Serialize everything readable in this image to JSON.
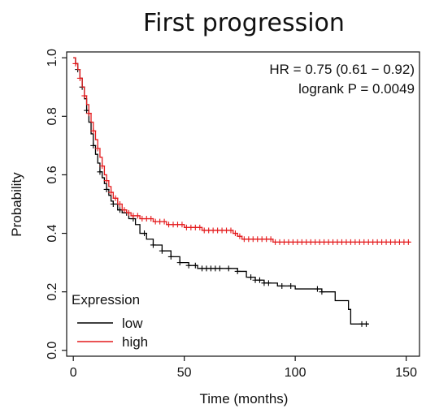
{
  "chart_data": {
    "type": "line",
    "title": "First progression",
    "xlabel": "Time (months)",
    "ylabel": "Probability",
    "xlim": [
      -3,
      156
    ],
    "ylim": [
      -0.02,
      1.02
    ],
    "xticks": [
      0,
      50,
      100,
      150
    ],
    "yticks": [
      0.0,
      0.2,
      0.4,
      0.6,
      0.8,
      1.0
    ],
    "annotations": [
      "HR = 0.75 (0.61 − 0.92)",
      "logrank P = 0.0049"
    ],
    "legend": {
      "title": "Expression",
      "placement": "bottom-left"
    },
    "series": [
      {
        "name": "low",
        "color": "#000000",
        "step_points": [
          [
            0,
            1.0
          ],
          [
            1,
            0.98
          ],
          [
            2,
            0.96
          ],
          [
            3,
            0.93
          ],
          [
            4,
            0.9
          ],
          [
            5,
            0.86
          ],
          [
            6,
            0.82
          ],
          [
            7,
            0.78
          ],
          [
            8,
            0.74
          ],
          [
            9,
            0.7
          ],
          [
            10,
            0.67
          ],
          [
            11,
            0.64
          ],
          [
            12,
            0.61
          ],
          [
            13,
            0.59
          ],
          [
            14,
            0.57
          ],
          [
            15,
            0.55
          ],
          [
            16,
            0.53
          ],
          [
            17,
            0.51
          ],
          [
            18,
            0.5
          ],
          [
            20,
            0.48
          ],
          [
            22,
            0.47
          ],
          [
            25,
            0.45
          ],
          [
            28,
            0.43
          ],
          [
            30,
            0.4
          ],
          [
            33,
            0.38
          ],
          [
            36,
            0.36
          ],
          [
            40,
            0.34
          ],
          [
            44,
            0.32
          ],
          [
            48,
            0.3
          ],
          [
            52,
            0.29
          ],
          [
            56,
            0.28
          ],
          [
            62,
            0.28
          ],
          [
            68,
            0.28
          ],
          [
            74,
            0.27
          ],
          [
            78,
            0.25
          ],
          [
            82,
            0.24
          ],
          [
            86,
            0.23
          ],
          [
            92,
            0.22
          ],
          [
            100,
            0.21
          ],
          [
            106,
            0.21
          ],
          [
            112,
            0.2
          ],
          [
            118,
            0.17
          ],
          [
            124,
            0.14
          ],
          [
            125,
            0.09
          ],
          [
            133,
            0.09
          ]
        ],
        "censor_x": [
          2,
          4,
          6,
          9,
          12,
          15,
          18,
          21,
          24,
          27,
          32,
          36,
          40,
          44,
          48,
          52,
          55,
          58,
          60,
          62,
          64,
          66,
          70,
          74,
          80,
          82,
          84,
          86,
          88,
          94,
          98,
          110,
          112,
          130,
          132
        ]
      },
      {
        "name": "high",
        "color": "#e41a1c",
        "step_points": [
          [
            0,
            1.0
          ],
          [
            1,
            0.98
          ],
          [
            2,
            0.96
          ],
          [
            3,
            0.93
          ],
          [
            4,
            0.9
          ],
          [
            5,
            0.87
          ],
          [
            6,
            0.84
          ],
          [
            7,
            0.81
          ],
          [
            8,
            0.78
          ],
          [
            9,
            0.75
          ],
          [
            10,
            0.72
          ],
          [
            11,
            0.69
          ],
          [
            12,
            0.66
          ],
          [
            13,
            0.63
          ],
          [
            14,
            0.6
          ],
          [
            15,
            0.58
          ],
          [
            16,
            0.56
          ],
          [
            17,
            0.54
          ],
          [
            18,
            0.52
          ],
          [
            20,
            0.5
          ],
          [
            22,
            0.48
          ],
          [
            24,
            0.47
          ],
          [
            26,
            0.46
          ],
          [
            30,
            0.45
          ],
          [
            36,
            0.44
          ],
          [
            42,
            0.43
          ],
          [
            50,
            0.42
          ],
          [
            58,
            0.41
          ],
          [
            66,
            0.41
          ],
          [
            72,
            0.4
          ],
          [
            74,
            0.39
          ],
          [
            76,
            0.38
          ],
          [
            80,
            0.38
          ],
          [
            90,
            0.37
          ],
          [
            152,
            0.37
          ]
        ],
        "censor_x": [
          1,
          3,
          5,
          7,
          9,
          11,
          13,
          15,
          17,
          19,
          21,
          23,
          25,
          27,
          29,
          31,
          33,
          35,
          37,
          39,
          41,
          43,
          45,
          47,
          49,
          51,
          53,
          55,
          57,
          59,
          61,
          63,
          65,
          67,
          69,
          71,
          73,
          75,
          77,
          79,
          81,
          83,
          85,
          87,
          89,
          91,
          93,
          95,
          97,
          99,
          101,
          103,
          105,
          107,
          109,
          111,
          113,
          115,
          117,
          119,
          121,
          123,
          125,
          127,
          129,
          131,
          133,
          135,
          137,
          139,
          141,
          143,
          145,
          147,
          149,
          151
        ]
      }
    ]
  }
}
